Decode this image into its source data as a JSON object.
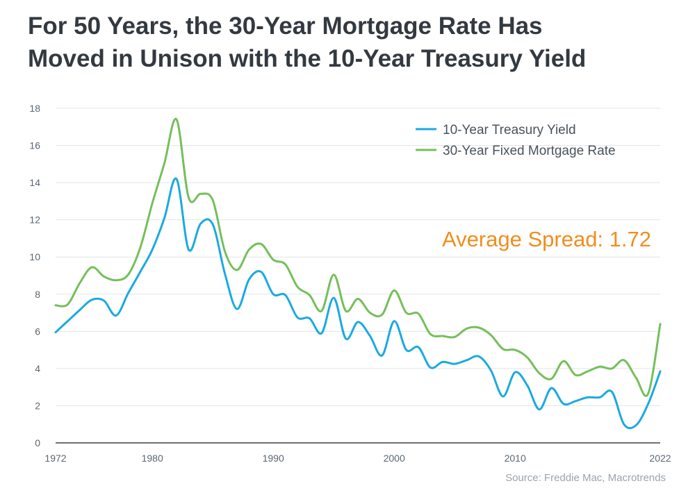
{
  "chart_data": {
    "type": "line",
    "title": [
      "For 50 Years, the 30-Year Mortgage Rate Has",
      "Moved in Unison with the 10-Year Treasury Yield"
    ],
    "xlabel": "",
    "ylabel": "",
    "xlim": [
      1972,
      2022
    ],
    "ylim": [
      0,
      18
    ],
    "x_ticks": [
      1972,
      1980,
      1990,
      2000,
      2010,
      2022
    ],
    "y_ticks": [
      0,
      2,
      4,
      6,
      8,
      10,
      12,
      14,
      16,
      18
    ],
    "grid": "horizontal",
    "legend_position": "top-right",
    "annotation": "Average Spread: 1.72",
    "source": "Source: Freddie Mac, Macrotrends",
    "series": [
      {
        "name": "10-Year Treasury Yield",
        "color": "#1ba9e1",
        "x": [
          1972,
          1973,
          1974,
          1975,
          1976,
          1977,
          1978,
          1979,
          1980,
          1981,
          1982,
          1983,
          1984,
          1985,
          1986,
          1987,
          1988,
          1989,
          1990,
          1991,
          1992,
          1993,
          1994,
          1995,
          1996,
          1997,
          1998,
          1999,
          2000,
          2001,
          2002,
          2003,
          2004,
          2005,
          2006,
          2007,
          2008,
          2009,
          2010,
          2011,
          2012,
          2013,
          2014,
          2015,
          2016,
          2017,
          2018,
          2019,
          2020,
          2021,
          2022
        ],
        "values": [
          5.95,
          6.55,
          7.15,
          7.7,
          7.65,
          6.85,
          8.05,
          9.2,
          10.4,
          12.1,
          14.2,
          10.4,
          11.8,
          11.75,
          9.1,
          7.2,
          8.8,
          9.2,
          8.0,
          7.95,
          6.75,
          6.7,
          5.9,
          7.8,
          5.6,
          6.5,
          5.75,
          4.7,
          6.55,
          5.0,
          5.15,
          4.05,
          4.35,
          4.25,
          4.45,
          4.65,
          3.9,
          2.5,
          3.8,
          3.1,
          1.8,
          2.95,
          2.1,
          2.25,
          2.45,
          2.45,
          2.75,
          1.0,
          0.95,
          2.1,
          3.85
        ]
      },
      {
        "name": "30-Year Fixed Mortgage Rate",
        "color": "#74bf5a",
        "x": [
          1972,
          1973,
          1974,
          1975,
          1976,
          1977,
          1978,
          1979,
          1980,
          1981,
          1982,
          1983,
          1984,
          1985,
          1986,
          1987,
          1988,
          1989,
          1990,
          1991,
          1992,
          1993,
          1994,
          1995,
          1996,
          1997,
          1998,
          1999,
          2000,
          2001,
          2002,
          2003,
          2004,
          2005,
          2006,
          2007,
          2008,
          2009,
          2010,
          2011,
          2012,
          2013,
          2014,
          2015,
          2016,
          2017,
          2018,
          2019,
          2020,
          2021,
          2022
        ],
        "values": [
          7.4,
          7.45,
          8.6,
          9.45,
          8.95,
          8.75,
          9.05,
          10.5,
          12.9,
          15.05,
          17.4,
          13.2,
          13.4,
          13.05,
          10.3,
          9.3,
          10.4,
          10.7,
          9.85,
          9.6,
          8.4,
          7.95,
          7.1,
          9.05,
          7.1,
          7.75,
          7.0,
          6.9,
          8.2,
          7.0,
          6.95,
          5.85,
          5.75,
          5.7,
          6.15,
          6.2,
          5.8,
          5.05,
          5.0,
          4.6,
          3.75,
          3.45,
          4.4,
          3.65,
          3.85,
          4.1,
          4.0,
          4.45,
          3.5,
          2.65,
          6.4
        ]
      }
    ]
  }
}
